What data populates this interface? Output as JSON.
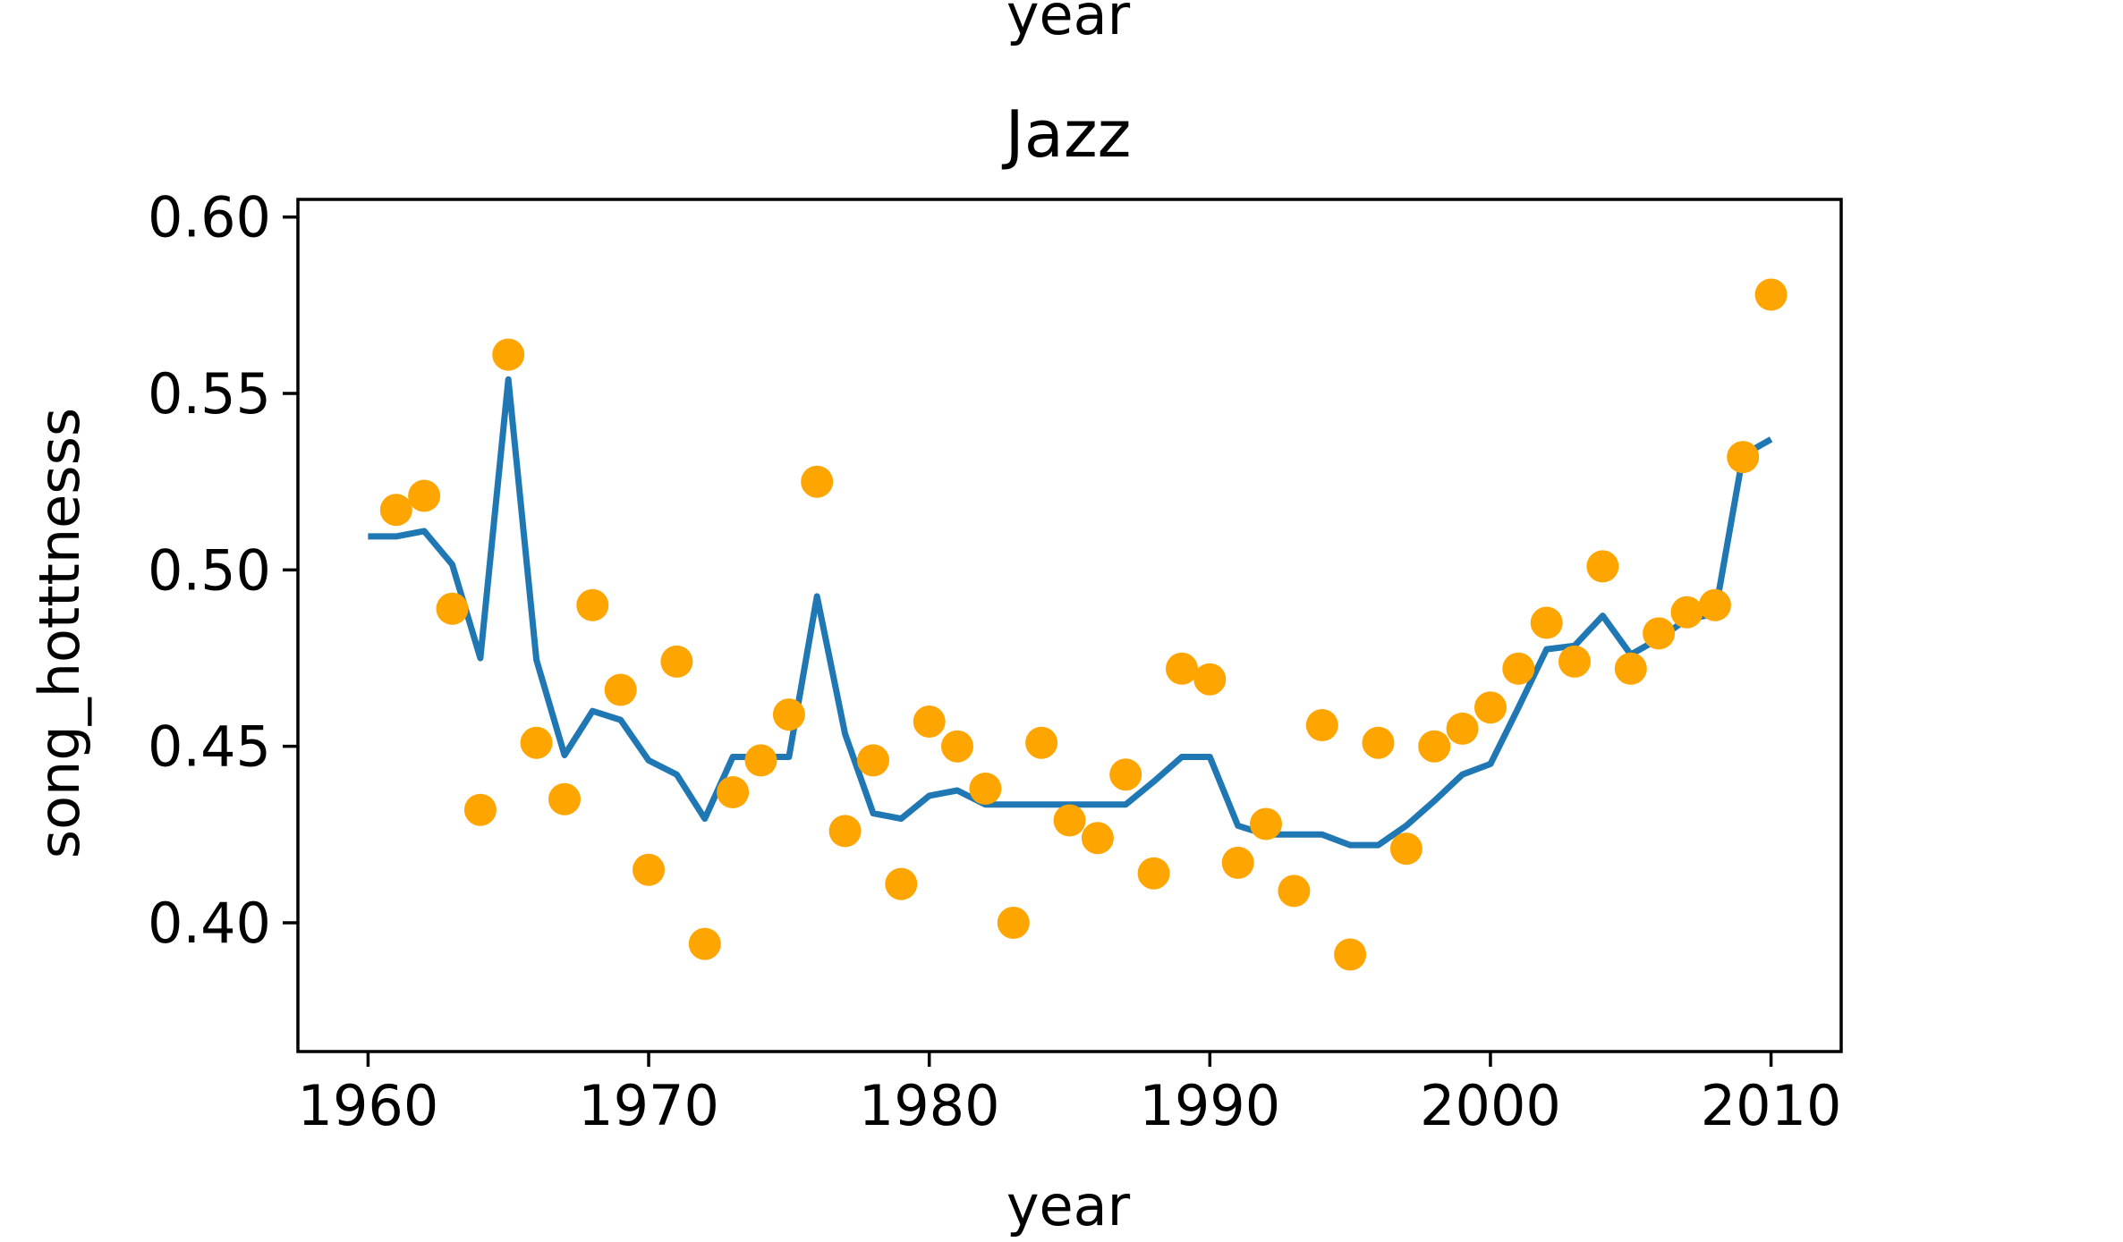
{
  "figure": {
    "top_label": "year"
  },
  "chart_data": {
    "type": "line",
    "title": "Jazz",
    "xlabel": "year",
    "ylabel": "song_hotttnesss",
    "xlim": [
      1957.5,
      2012.5
    ],
    "ylim": [
      0.3635,
      0.605
    ],
    "xticks": [
      1960,
      1970,
      1980,
      1990,
      2000,
      2010
    ],
    "xtick_labels": [
      "1960",
      "1970",
      "1980",
      "1990",
      "2000",
      "2010"
    ],
    "yticks": [
      0.4,
      0.45,
      0.5,
      0.55,
      0.6
    ],
    "ytick_labels": [
      "0.40",
      "0.45",
      "0.50",
      "0.55",
      "0.60"
    ],
    "grid": false,
    "colors": {
      "line": "#1f77b4",
      "points": "#ffa500"
    },
    "series": [
      {
        "kind": "line",
        "x": [
          1960,
          1961,
          1962,
          1963,
          1964,
          1965,
          1966,
          1967,
          1968,
          1969,
          1970,
          1971,
          1972,
          1973,
          1974,
          1975,
          1976,
          1977,
          1978,
          1979,
          1980,
          1981,
          1982,
          1983,
          1984,
          1985,
          1986,
          1987,
          1988,
          1989,
          1990,
          1991,
          1992,
          1993,
          1994,
          1995,
          1996,
          1997,
          1998,
          1999,
          2000,
          2001,
          2002,
          2003,
          2004,
          2005,
          2006,
          2007,
          2008,
          2009,
          2010
        ],
        "y": [
          0.5095,
          0.5095,
          0.511,
          0.5015,
          0.475,
          0.554,
          0.4745,
          0.4475,
          0.46,
          0.4575,
          0.446,
          0.442,
          0.4295,
          0.447,
          0.447,
          0.447,
          0.4925,
          0.4535,
          0.431,
          0.4295,
          0.436,
          0.4375,
          0.4335,
          0.4335,
          0.4335,
          0.4335,
          0.4335,
          0.4335,
          0.44,
          0.447,
          0.447,
          0.4275,
          0.425,
          0.425,
          0.425,
          0.422,
          0.422,
          0.4275,
          0.4345,
          0.442,
          0.445,
          0.461,
          0.4775,
          0.4785,
          0.487,
          0.476,
          0.4805,
          0.486,
          0.4875,
          0.5325,
          0.537
        ]
      },
      {
        "kind": "scatter",
        "x": [
          1961,
          1962,
          1963,
          1964,
          1965,
          1966,
          1967,
          1968,
          1969,
          1970,
          1971,
          1972,
          1973,
          1974,
          1975,
          1976,
          1977,
          1978,
          1979,
          1980,
          1981,
          1982,
          1983,
          1984,
          1985,
          1986,
          1987,
          1988,
          1989,
          1990,
          1991,
          1992,
          1993,
          1994,
          1995,
          1996,
          1997,
          1998,
          1999,
          2000,
          2001,
          2002,
          2003,
          2004,
          2005,
          2006,
          2007,
          2008,
          2009,
          2010
        ],
        "y": [
          0.517,
          0.521,
          0.489,
          0.432,
          0.561,
          0.451,
          0.435,
          0.49,
          0.466,
          0.415,
          0.474,
          0.394,
          0.437,
          0.446,
          0.459,
          0.525,
          0.426,
          0.446,
          0.411,
          0.457,
          0.45,
          0.438,
          0.4,
          0.451,
          0.429,
          0.424,
          0.442,
          0.414,
          0.472,
          0.469,
          0.417,
          0.428,
          0.409,
          0.456,
          0.391,
          0.451,
          0.421,
          0.45,
          0.455,
          0.461,
          0.472,
          0.485,
          0.474,
          0.501,
          0.472,
          0.482,
          0.488,
          0.49,
          0.532,
          0.578
        ]
      }
    ]
  }
}
